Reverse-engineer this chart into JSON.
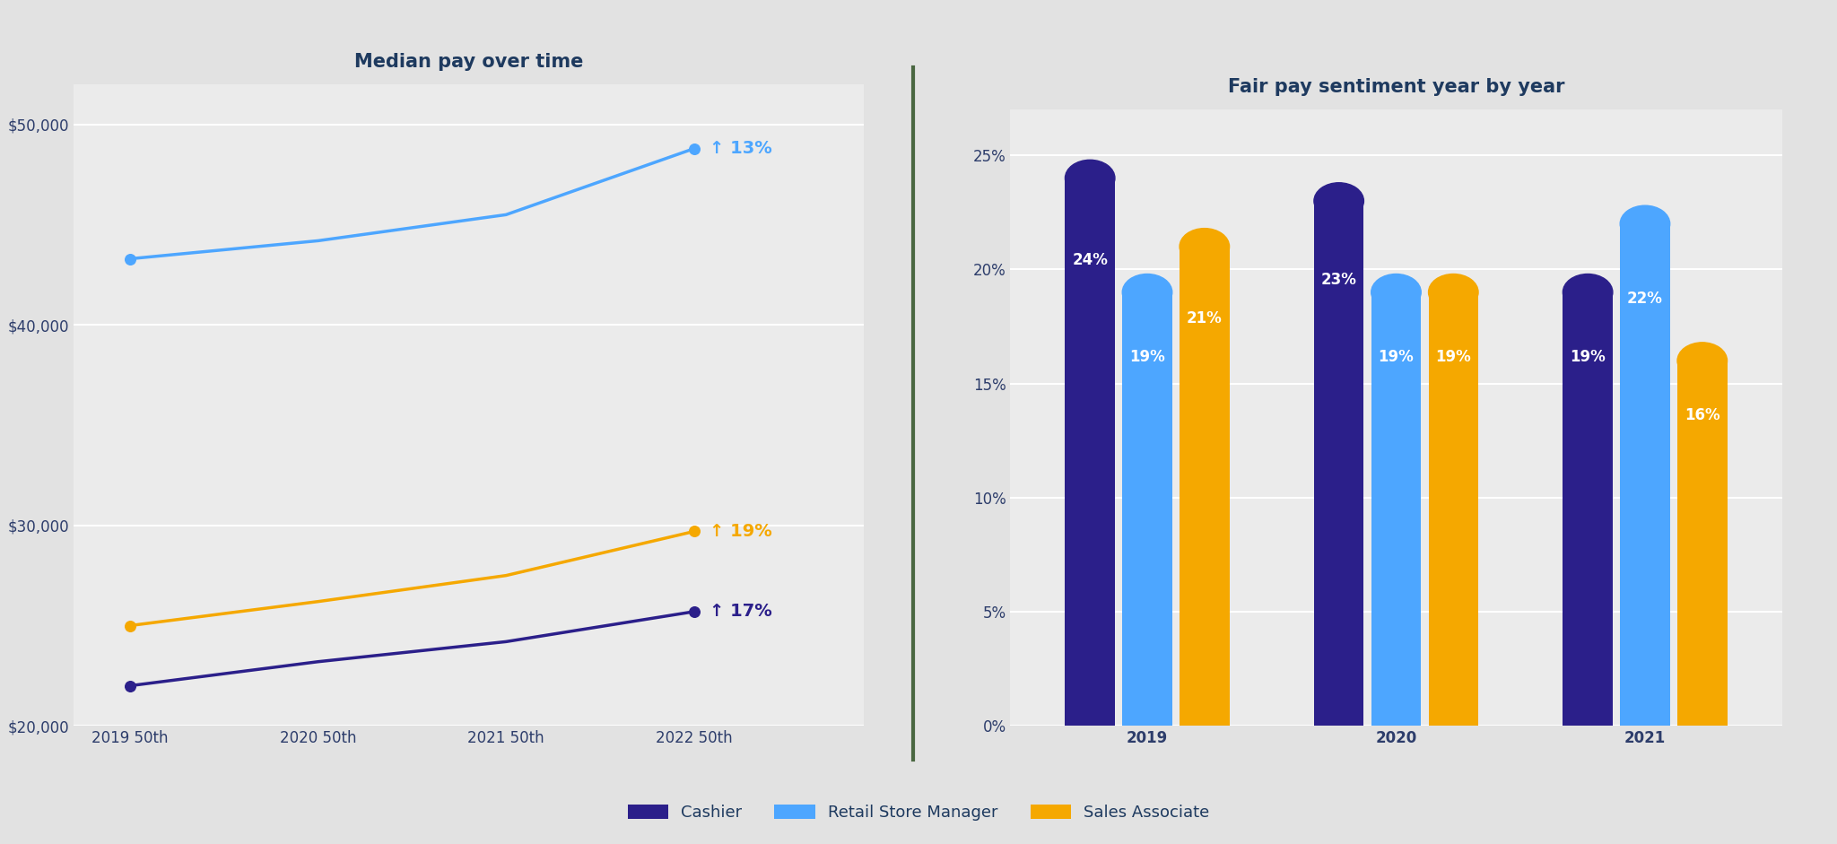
{
  "left_title": "Median pay over time",
  "right_title": "Fair pay sentiment year by year",
  "line_x_labels": [
    "2019 50th",
    "2020 50th",
    "2021 50th",
    "2022 50th"
  ],
  "cashier": [
    22000,
    23200,
    24200,
    25700
  ],
  "retail_manager": [
    43300,
    44200,
    45500,
    48800
  ],
  "sales_associate": [
    25000,
    26200,
    27500,
    29700
  ],
  "cashier_pct": 17,
  "manager_pct": 13,
  "associate_pct": 19,
  "cashier_color": "#2b1f8a",
  "manager_color": "#4da6ff",
  "associate_color": "#f5a800",
  "bar_years": [
    "2019",
    "2020",
    "2021"
  ],
  "bar_cashier": [
    0.24,
    0.23,
    0.19
  ],
  "bar_manager": [
    0.19,
    0.19,
    0.22
  ],
  "bar_associate": [
    0.21,
    0.19,
    0.16
  ],
  "ylim_left": [
    20000,
    52000
  ],
  "ylim_right": [
    0,
    0.27
  ],
  "legend_cashier": "Cashier",
  "legend_manager": "Retail Store Manager",
  "legend_associate": "Sales Associate",
  "bg_color": "#ebebeb",
  "chart_bg": "#ebebeb",
  "outer_bg": "#e2e2e2",
  "title_color": "#1e3a5f",
  "label_color": "#2d3d6b",
  "divider_color": "#4a6741",
  "grid_color": "#ffffff"
}
